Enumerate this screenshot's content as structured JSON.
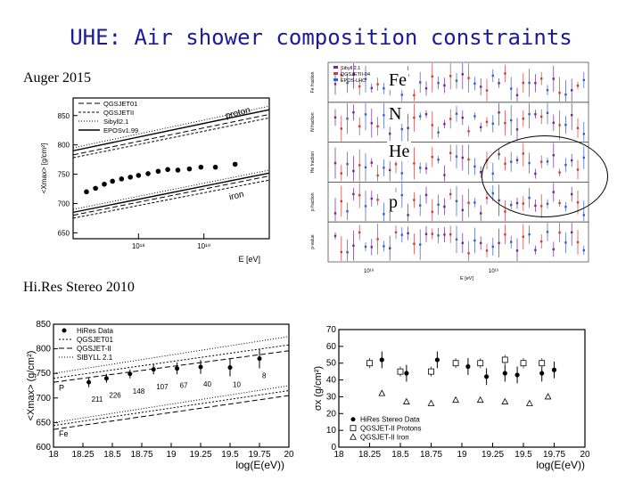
{
  "slide": {
    "title": "UHE: Air shower composition constraints",
    "label_auger": "Auger 2015",
    "label_hires": "Hi.Res Stereo 2010",
    "fraction_labels": [
      "Fe",
      "N",
      "He",
      "p"
    ]
  },
  "chart_data": [
    {
      "id": "auger_xmax",
      "type": "scatter",
      "ylabel": "<Xmax> [g/cm²]",
      "xlabel": "E [eV]",
      "log_x": true,
      "xlim": [
        1e+17,
        1e+20
      ],
      "ylim": [
        640,
        880
      ],
      "x_ticks": [
        {
          "v": 1e+18,
          "label": "10¹⁸"
        },
        {
          "v": 1e+19,
          "label": "10¹⁹"
        }
      ],
      "y_ticks": [
        650,
        700,
        750,
        800,
        850
      ],
      "legend": [
        "QGSJET01",
        "QGSJETII",
        "Sibyll2.1",
        "EPOSv1.99"
      ],
      "band_labels": [
        "proton",
        "iron"
      ],
      "points": [
        {
          "x": 1.6e+17,
          "y": 720
        },
        {
          "x": 2.2e+17,
          "y": 726
        },
        {
          "x": 3e+17,
          "y": 733
        },
        {
          "x": 4e+17,
          "y": 738
        },
        {
          "x": 5.5e+17,
          "y": 742
        },
        {
          "x": 7.5e+17,
          "y": 745
        },
        {
          "x": 1e+18,
          "y": 748
        },
        {
          "x": 1.4e+18,
          "y": 751
        },
        {
          "x": 2e+18,
          "y": 755
        },
        {
          "x": 2.8e+18,
          "y": 758
        },
        {
          "x": 4e+18,
          "y": 757
        },
        {
          "x": 6e+18,
          "y": 759
        },
        {
          "x": 9e+18,
          "y": 762
        },
        {
          "x": 1.5e+19,
          "y": 762
        },
        {
          "x": 3e+19,
          "y": 767
        }
      ],
      "models": {
        "proton": [
          {
            "name": "QGSJET01",
            "y_start": 783,
            "y_end": 852
          },
          {
            "name": "QGSJETII",
            "y_start": 778,
            "y_end": 846
          },
          {
            "name": "Sibyll2.1",
            "y_start": 795,
            "y_end": 866
          },
          {
            "name": "EPOSv1.99",
            "y_start": 790,
            "y_end": 860
          }
        ],
        "iron": [
          {
            "name": "QGSJET01",
            "y_start": 680,
            "y_end": 747
          },
          {
            "name": "QGSJETII",
            "y_start": 675,
            "y_end": 740
          },
          {
            "name": "Sibyll2.1",
            "y_start": 690,
            "y_end": 757
          },
          {
            "name": "EPOSv1.99",
            "y_start": 685,
            "y_end": 752
          }
        ]
      }
    },
    {
      "id": "auger_fractions",
      "type": "scatter",
      "xlabel": "E [eV]",
      "panels": [
        "Fe fraction",
        "N fraction",
        "He fraction",
        "p fraction",
        "p-value"
      ],
      "legend": [
        "Sibyll 2.1",
        "QGSJETII-04",
        "EPOS-LHC"
      ],
      "x_ticks": [
        "10¹⁸",
        "10¹⁹"
      ]
    },
    {
      "id": "hires_xmax",
      "type": "scatter",
      "ylabel": "<Xmax> (g/cm²)",
      "xlabel": "log(E(eV))",
      "xlim": [
        18,
        20
      ],
      "ylim": [
        600,
        850
      ],
      "x_ticks": [
        18,
        18.25,
        18.5,
        18.75,
        19,
        19.25,
        19.5,
        19.75,
        20
      ],
      "y_ticks": [
        600,
        650,
        700,
        750,
        800,
        850
      ],
      "legend": [
        "HiRes Data",
        "QGSJET01",
        "QGSJET-II",
        "SIBYLL 2.1"
      ],
      "band_labels": [
        "P",
        "Fe"
      ],
      "points": [
        {
          "x": 18.3,
          "y": 732,
          "err": 10,
          "n": "211"
        },
        {
          "x": 18.45,
          "y": 740,
          "err": 9,
          "n": "226"
        },
        {
          "x": 18.65,
          "y": 749,
          "err": 9,
          "n": "148"
        },
        {
          "x": 18.85,
          "y": 758,
          "err": 10,
          "n": "107"
        },
        {
          "x": 19.05,
          "y": 760,
          "err": 12,
          "n": "67"
        },
        {
          "x": 19.25,
          "y": 763,
          "err": 14,
          "n": "40"
        },
        {
          "x": 19.5,
          "y": 762,
          "err": 18,
          "n": "10"
        },
        {
          "x": 19.75,
          "y": 780,
          "err": 20,
          "n": "8"
        }
      ],
      "models": {
        "proton": [
          {
            "name": "QGSJET01",
            "y_start": 740,
            "y_end": 808
          },
          {
            "name": "QGSJET-II",
            "y_start": 732,
            "y_end": 796
          },
          {
            "name": "SIBYLL 2.1",
            "y_start": 750,
            "y_end": 825
          }
        ],
        "iron": [
          {
            "name": "QGSJET01",
            "y_start": 644,
            "y_end": 715
          },
          {
            "name": "QGSJET-II",
            "y_start": 636,
            "y_end": 705
          },
          {
            "name": "SIBYLL 2.1",
            "y_start": 650,
            "y_end": 725
          }
        ]
      }
    },
    {
      "id": "hires_sigma",
      "type": "scatter",
      "ylabel": "σx (g/cm²)",
      "xlabel": "log(E(eV))",
      "xlim": [
        18,
        20
      ],
      "ylim": [
        0,
        70
      ],
      "x_ticks": [
        18,
        18.25,
        18.5,
        18.75,
        19,
        19.25,
        19.5,
        19.75,
        20
      ],
      "y_ticks": [
        0,
        10,
        20,
        30,
        40,
        50,
        60,
        70
      ],
      "legend": [
        "HiRes Stereo Data",
        "QGSJET-II Protons",
        "QGSJET-II Iron"
      ],
      "series": [
        {
          "name": "HiRes Stereo Data",
          "points": [
            [
              18.35,
              52
            ],
            [
              18.55,
              44
            ],
            [
              18.8,
              52
            ],
            [
              19.05,
              48
            ],
            [
              19.2,
              42
            ],
            [
              19.35,
              44
            ],
            [
              19.45,
              43
            ],
            [
              19.65,
              44
            ],
            [
              19.75,
              46
            ]
          ]
        },
        {
          "name": "QGSJET-II Protons",
          "points": [
            [
              18.25,
              50
            ],
            [
              18.5,
              45
            ],
            [
              18.75,
              45
            ],
            [
              18.95,
              50
            ],
            [
              19.15,
              50
            ],
            [
              19.35,
              52
            ],
            [
              19.5,
              50
            ],
            [
              19.65,
              50
            ]
          ]
        },
        {
          "name": "QGSJET-II Iron",
          "points": [
            [
              18.35,
              32
            ],
            [
              18.55,
              27
            ],
            [
              18.75,
              26
            ],
            [
              18.95,
              28
            ],
            [
              19.15,
              28
            ],
            [
              19.35,
              27
            ],
            [
              19.55,
              26
            ],
            [
              19.7,
              30
            ]
          ]
        }
      ]
    }
  ]
}
